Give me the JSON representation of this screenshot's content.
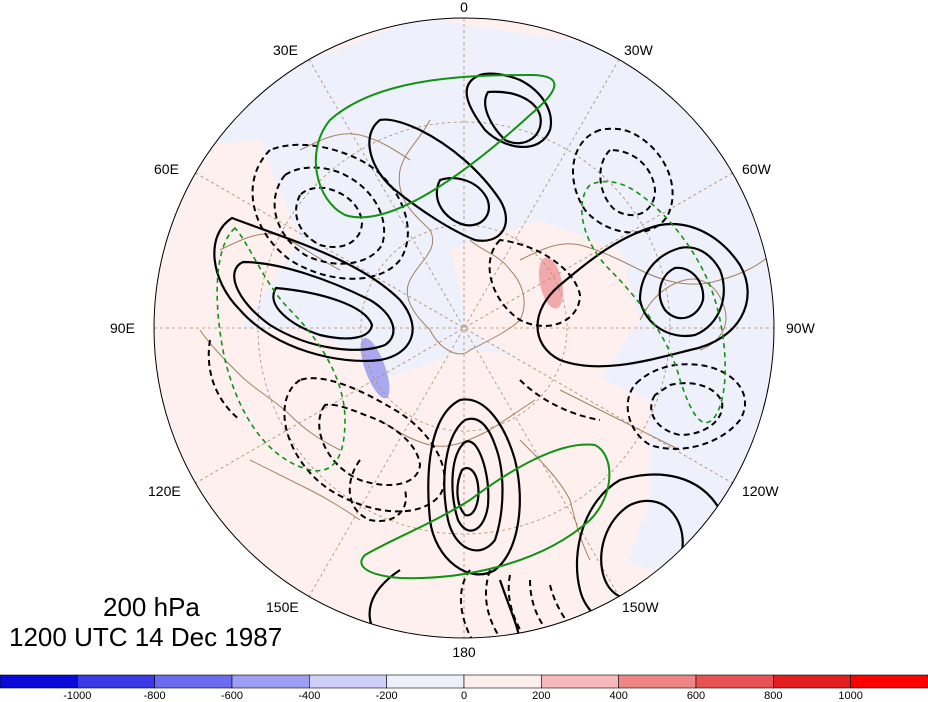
{
  "map": {
    "projection": "north-polar-stereographic",
    "longitude_labels": [
      "0",
      "30W",
      "60W",
      "90W",
      "120W",
      "150W",
      "180",
      "150E",
      "120E",
      "90E",
      "60E",
      "30E"
    ],
    "colors": {
      "positive_fill": "#f3a9ab",
      "weak_positive_fill": "#fdf0ef",
      "negative_fill": "#a9a9f2",
      "weak_negative_fill": "#eef0fb",
      "contour": "#000000",
      "green_contour": "#119211",
      "coastline": "#a2825f",
      "graticule": "#b08b69"
    }
  },
  "title": {
    "level": "200 hPa",
    "time": "1200 UTC 14 Dec 1987"
  },
  "colorbar": {
    "ticks": [
      "-1000",
      "-800",
      "-600",
      "-400",
      "-200",
      "0",
      "200",
      "400",
      "600",
      "800",
      "1000"
    ],
    "colors": [
      "#0a0ad8",
      "#3a3ae9",
      "#6b6bf0",
      "#9e9ef5",
      "#cfcff9",
      "#efeffc",
      "#fdeeee",
      "#f7b9b9",
      "#f08585",
      "#e95252",
      "#e41e1e",
      "#ff0000"
    ]
  }
}
